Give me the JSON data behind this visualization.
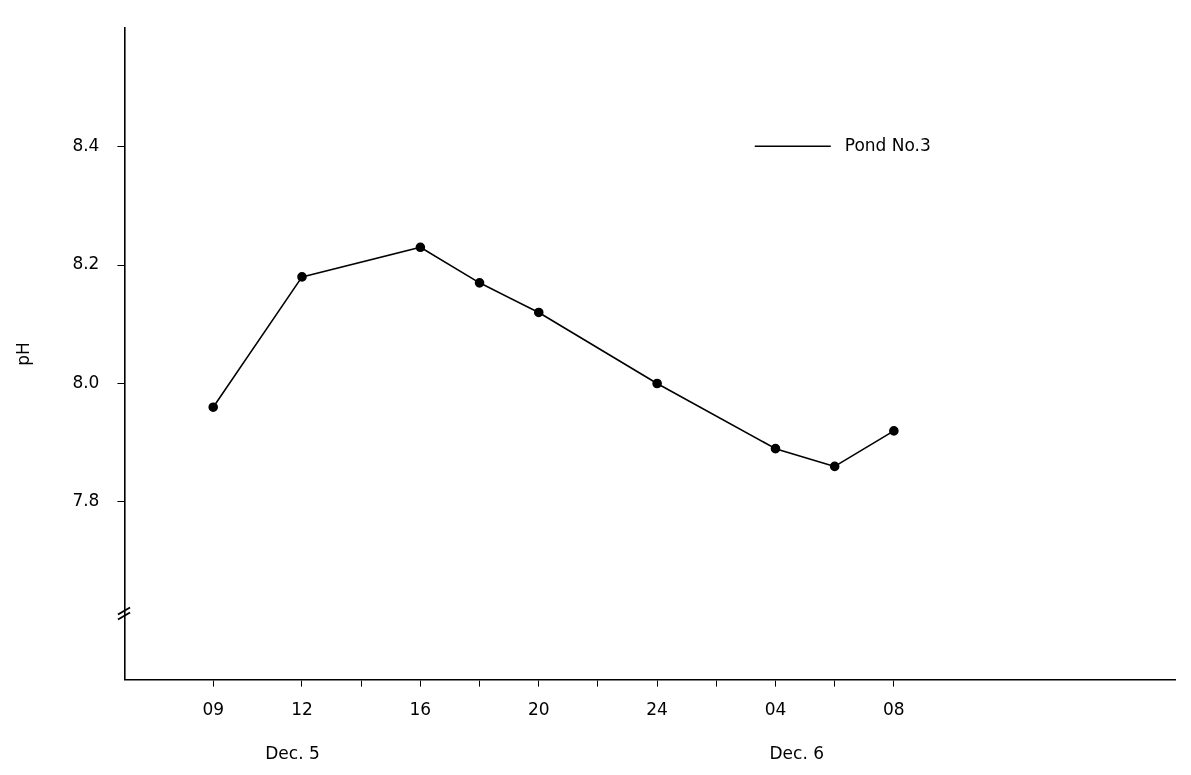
{
  "chart_data": {
    "type": "line",
    "ylabel": "pH",
    "x": [
      "--12-05T09:00",
      "--12-05T12:00",
      "--12-05T16:00",
      "--12-05T18:00",
      "--12-05T20:00",
      "--12-06T00:00",
      "--12-06T04:00",
      "--12-06T06:00",
      "--12-06T08:00"
    ],
    "series": [
      {
        "name": "Pond No.3",
        "color": "#000000",
        "values": [
          7.96,
          8.18,
          8.23,
          8.17,
          8.12,
          8.0,
          7.89,
          7.86,
          7.92
        ]
      }
    ],
    "xlim": [
      "--12-05T06:00",
      "--12-06T17:30"
    ],
    "xticks": [
      {
        "value": "--12-05T09:00",
        "label": "09"
      },
      {
        "value": "--12-05T12:00",
        "label": "12"
      },
      {
        "value": "--12-05T14:00",
        "label": null
      },
      {
        "value": "--12-05T16:00",
        "label": "16"
      },
      {
        "value": "--12-05T18:00",
        "label": null
      },
      {
        "value": "--12-05T20:00",
        "label": "20"
      },
      {
        "value": "--12-05T22:00",
        "label": null
      },
      {
        "value": "--12-06T00:00",
        "label": "24"
      },
      {
        "value": "--12-06T02:00",
        "label": null
      },
      {
        "value": "--12-06T04:00",
        "label": "04"
      },
      {
        "value": "--12-06T06:00",
        "label": null
      },
      {
        "value": "--12-06T08:00",
        "label": "08"
      }
    ],
    "ylim": [
      7.5,
      8.6
    ],
    "yticks": [
      7.8,
      {
        "value": 8,
        "label": "8.0"
      },
      8.2,
      8.4
    ],
    "annotations": [
      "Dec. 5",
      "Dec. 6"
    ],
    "marker": "circle",
    "line_style": "solid",
    "legend": "top right",
    "grid": false
  }
}
